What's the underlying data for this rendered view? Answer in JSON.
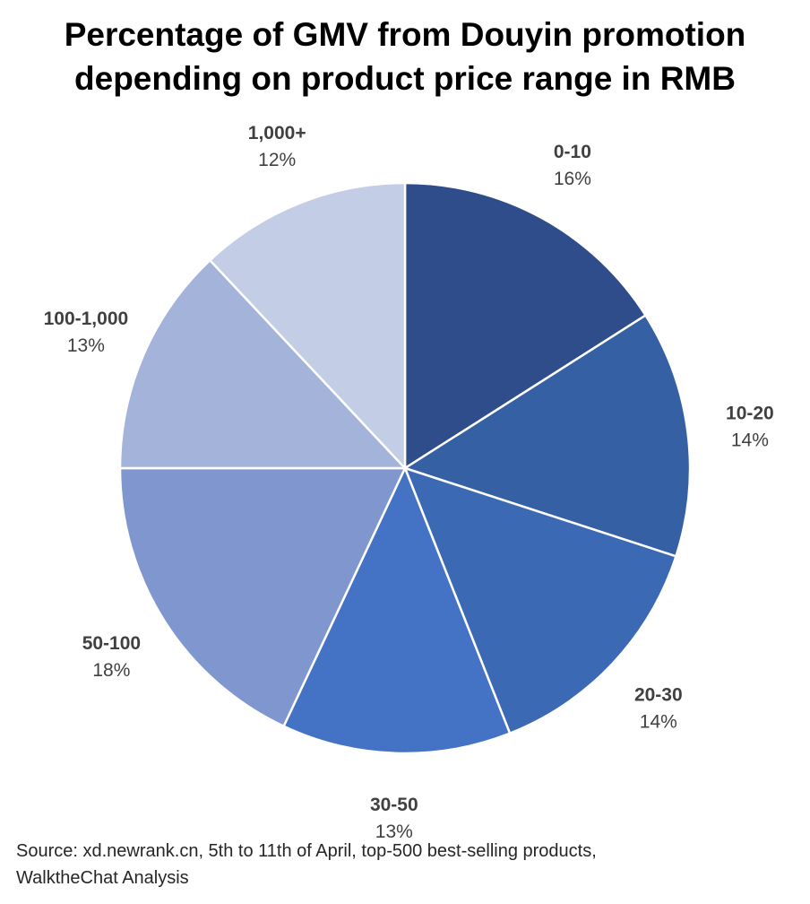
{
  "title": {
    "line1": "Percentage of GMV from Douyin promotion",
    "line2": "depending on product price range in RMB"
  },
  "source": {
    "line1": "Source: xd.newrank.cn, 5th to 11th of April, top-500 best-selling products,",
    "line2": "WalktheChat Analysis"
  },
  "chart_data": {
    "type": "pie",
    "title": "Percentage of GMV from Douyin promotion depending on product price range in RMB",
    "unit": "%",
    "categories": [
      "0-10",
      "10-20",
      "20-30",
      "30-50",
      "50-100",
      "100-1,000",
      "1,000+"
    ],
    "values": [
      16,
      14,
      14,
      13,
      18,
      13,
      12
    ],
    "value_labels": [
      "16%",
      "14%",
      "14%",
      "13%",
      "18%",
      "13%",
      "12%"
    ],
    "colors": [
      "#2e4d8a",
      "#3560a4",
      "#3c69b4",
      "#4472c4",
      "#7f96cf",
      "#a4b3d9",
      "#c3cde6"
    ],
    "start": "12 o'clock",
    "direction": "clockwise",
    "legend": "none (category labels outside slices)"
  }
}
